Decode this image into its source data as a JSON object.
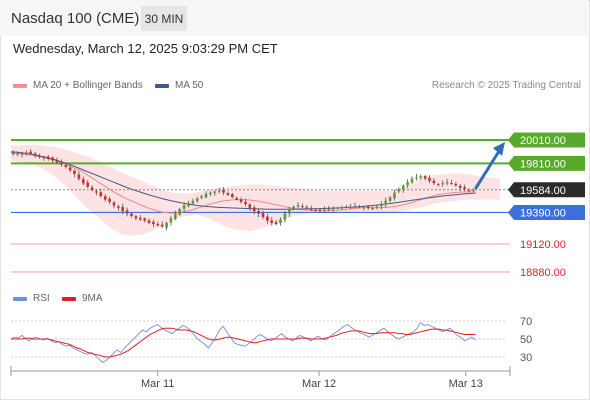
{
  "header": {
    "title": "Nasdaq 100 (CME)",
    "timeframe": "30 MIN"
  },
  "datetime": "Wednesday, March 12, 2025 9:03:29 PM CET",
  "legend": {
    "bollinger": "MA 20 + Bollinger Bands",
    "ma50": "MA 50",
    "research": "Research © 2025 Trading Central"
  },
  "rsi_legend": {
    "rsi": "RSI",
    "ma9": "9MA"
  },
  "colors": {
    "green": "#5aa92f",
    "blue": "#3d6fdc",
    "red": "#e2202a",
    "price_box": "#2b2b2b",
    "band_fill": "#fde0e0",
    "ma20": "#f08a8a",
    "ma50": "#41598c",
    "rsi": "#6f8ee0",
    "rsi_ma": "#e02020",
    "arrow": "#2f6db5",
    "candle_up": "#5e9a36",
    "candle_down": "#c8312b"
  },
  "chart_data": [
    {
      "type": "candlestick",
      "y_range": [
        18780,
        20200
      ],
      "x_ticks": [
        {
          "label": "Mar 11",
          "x": 0.3
        },
        {
          "label": "Mar 12",
          "x": 0.63
        },
        {
          "label": "Mar 13",
          "x": 0.93
        }
      ],
      "levels": [
        {
          "value": 20010,
          "label": "20010.00",
          "kind": "resistance"
        },
        {
          "value": 19810,
          "label": "19810.00",
          "kind": "resistance"
        },
        {
          "value": 19584,
          "label": "19584.00",
          "kind": "price"
        },
        {
          "value": 19390,
          "label": "19390.00",
          "kind": "pivot"
        },
        {
          "value": 19120,
          "label": "19120.00",
          "kind": "support"
        },
        {
          "value": 18880,
          "label": "18880.00",
          "kind": "support"
        }
      ],
      "close": [
        19895,
        19900,
        19890,
        19905,
        19895,
        19880,
        19870,
        19860,
        19850,
        19835,
        19820,
        19800,
        19780,
        19750,
        19720,
        19680,
        19640,
        19610,
        19580,
        19560,
        19530,
        19500,
        19480,
        19450,
        19430,
        19400,
        19380,
        19360,
        19340,
        19330,
        19320,
        19300,
        19290,
        19280,
        19270,
        19300,
        19340,
        19380,
        19420,
        19450,
        19470,
        19490,
        19510,
        19530,
        19550,
        19560,
        19570,
        19575,
        19560,
        19540,
        19520,
        19500,
        19480,
        19460,
        19430,
        19400,
        19380,
        19350,
        19320,
        19300,
        19290,
        19330,
        19380,
        19420,
        19440,
        19450,
        19440,
        19430,
        19420,
        19410,
        19410,
        19415,
        19420,
        19425,
        19430,
        19435,
        19440,
        19440,
        19445,
        19440,
        19435,
        19430,
        19425,
        19440,
        19460,
        19490,
        19520,
        19560,
        19590,
        19620,
        19650,
        19680,
        19690,
        19700,
        19680,
        19660,
        19640,
        19630,
        19640,
        19650,
        19640,
        19620,
        19600,
        19590,
        19580,
        19584
      ],
      "ma20": [
        19900,
        19895,
        19890,
        19885,
        19880,
        19870,
        19860,
        19850,
        19835,
        19820,
        19800,
        19780,
        19760,
        19740,
        19710,
        19680,
        19650,
        19620,
        19590,
        19560,
        19535,
        19510,
        19490,
        19470,
        19450,
        19430,
        19415,
        19400,
        19390,
        19385,
        19385,
        19390,
        19400,
        19410,
        19425,
        19440,
        19455,
        19470,
        19480,
        19490,
        19495,
        19500,
        19500,
        19498,
        19495,
        19490,
        19480,
        19470,
        19460,
        19450,
        19440,
        19430,
        19420,
        19415,
        19410,
        19408,
        19406,
        19405,
        19405,
        19408,
        19410,
        19415,
        19420,
        19425,
        19430,
        19430,
        19430,
        19430,
        19432,
        19435,
        19440,
        19448,
        19458,
        19470,
        19485,
        19500,
        19515,
        19528,
        19540,
        19548,
        19555,
        19560,
        19563,
        19565,
        19566,
        19566
      ],
      "ma50": [
        19910,
        19905,
        19898,
        19890,
        19880,
        19868,
        19855,
        19840,
        19822,
        19803,
        19783,
        19762,
        19740,
        19718,
        19696,
        19674,
        19652,
        19630,
        19608,
        19588,
        19570,
        19552,
        19535,
        19520,
        19505,
        19492,
        19480,
        19470,
        19460,
        19452,
        19445,
        19440,
        19436,
        19432,
        19430,
        19428,
        19426,
        19424,
        19422,
        19420,
        19419,
        19418,
        19418,
        19418,
        19418,
        19419,
        19420,
        19421,
        19422,
        19424,
        19426,
        19428,
        19430,
        19433,
        19436,
        19440,
        19445,
        19450,
        19456,
        19462,
        19470,
        19478,
        19486,
        19494,
        19502,
        19510,
        19518,
        19525,
        19532,
        19538,
        19543,
        19548,
        19552,
        19556
      ],
      "bb_upper": [
        19960,
        19965,
        19970,
        19960,
        19950,
        19930,
        19900,
        19870,
        19830,
        19790,
        19740,
        19700,
        19660,
        19620,
        19580,
        19560,
        19550,
        19560,
        19580,
        19600,
        19610,
        19620,
        19630,
        19630,
        19620,
        19610,
        19600,
        19590,
        19580,
        19575,
        19575,
        19575,
        19575,
        19575,
        19575,
        19575,
        19600,
        19640,
        19690,
        19710,
        19720,
        19725,
        19720,
        19700,
        19690,
        19680
      ],
      "bb_lower": [
        19830,
        19820,
        19800,
        19760,
        19700,
        19620,
        19520,
        19430,
        19350,
        19270,
        19210,
        19190,
        19200,
        19230,
        19280,
        19330,
        19360,
        19370,
        19350,
        19300,
        19260,
        19240,
        19230,
        19250,
        19280,
        19320,
        19360,
        19380,
        19390,
        19390,
        19390,
        19390,
        19385,
        19380,
        19380,
        19390,
        19400,
        19420,
        19440,
        19470,
        19480,
        19490,
        19500,
        19500,
        19500,
        19500
      ]
    },
    {
      "type": "line",
      "name": "RSI",
      "y_range": [
        20,
        80
      ],
      "y_ticks": [
        70,
        50,
        30
      ],
      "rsi": [
        50,
        52,
        51,
        54,
        50,
        48,
        51,
        52,
        50,
        49,
        51,
        48,
        46,
        47,
        44,
        42,
        43,
        40,
        38,
        36,
        34,
        33,
        35,
        32,
        28,
        24,
        26,
        30,
        34,
        38,
        35,
        40,
        44,
        48,
        52,
        56,
        60,
        58,
        62,
        64,
        66,
        63,
        60,
        58,
        56,
        59,
        62,
        65,
        63,
        60,
        55,
        50,
        47,
        44,
        40,
        46,
        52,
        60,
        64,
        58,
        52,
        46,
        44,
        43,
        42,
        45,
        48,
        52,
        55,
        53,
        50,
        48,
        50,
        53,
        56,
        52,
        50,
        48,
        51,
        54,
        52,
        50,
        48,
        51,
        53,
        50,
        49,
        52,
        55,
        58,
        61,
        64,
        66,
        63,
        60,
        58,
        56,
        54,
        52,
        55,
        57,
        60,
        62,
        58,
        55,
        52,
        50,
        52,
        54,
        56,
        58,
        62,
        68,
        65,
        66,
        64,
        62,
        60,
        58,
        60,
        62,
        58,
        54,
        52,
        48,
        50,
        52,
        49
      ],
      "ma9": [
        50,
        50,
        50,
        50,
        51,
        51,
        50,
        50,
        50,
        50,
        50,
        49,
        48,
        47,
        46,
        45,
        44,
        42,
        40,
        39,
        37,
        35,
        34,
        33,
        32,
        31,
        30,
        30,
        31,
        32,
        33,
        35,
        37,
        40,
        43,
        46,
        49,
        52,
        55,
        57,
        59,
        61,
        62,
        62,
        62,
        61,
        60,
        60,
        60,
        59,
        58,
        56,
        54,
        52,
        50,
        49,
        49,
        50,
        51,
        52,
        52,
        51,
        50,
        49,
        48,
        47,
        46,
        46,
        47,
        48,
        49,
        50,
        50,
        50,
        50,
        50,
        50,
        50,
        50,
        51,
        51,
        51,
        50,
        50,
        50,
        50,
        51,
        52,
        53,
        54,
        56,
        57,
        58,
        59,
        59,
        59,
        58,
        57,
        56,
        56,
        56,
        57,
        57,
        57,
        57,
        57,
        56,
        56,
        55,
        55,
        56,
        57,
        58,
        59,
        60,
        61,
        61,
        61,
        60,
        60,
        59,
        58,
        57,
        56,
        55,
        55,
        55,
        55
      ]
    }
  ]
}
